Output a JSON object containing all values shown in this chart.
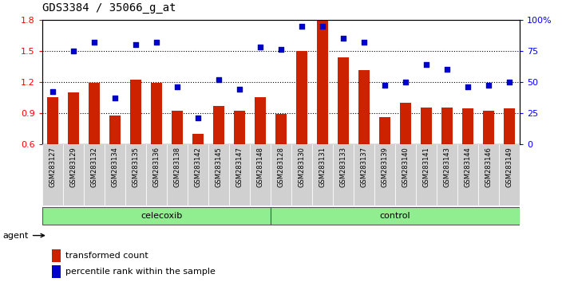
{
  "title": "GDS3384 / 35066_g_at",
  "categories": [
    "GSM283127",
    "GSM283129",
    "GSM283132",
    "GSM283134",
    "GSM283135",
    "GSM283136",
    "GSM283138",
    "GSM283142",
    "GSM283145",
    "GSM283147",
    "GSM283148",
    "GSM283128",
    "GSM283130",
    "GSM283131",
    "GSM283133",
    "GSM283137",
    "GSM283139",
    "GSM283140",
    "GSM283141",
    "GSM283143",
    "GSM283144",
    "GSM283146",
    "GSM283149"
  ],
  "bar_values": [
    1.05,
    1.1,
    1.19,
    0.87,
    1.22,
    1.19,
    0.92,
    0.7,
    0.97,
    0.92,
    1.05,
    0.89,
    1.5,
    1.8,
    1.44,
    1.31,
    0.86,
    1.0,
    0.95,
    0.95,
    0.94,
    0.92,
    0.94
  ],
  "blue_values": [
    42,
    75,
    82,
    37,
    80,
    82,
    46,
    21,
    52,
    44,
    78,
    76,
    95,
    95,
    85,
    82,
    47,
    50,
    64,
    60,
    46,
    47,
    50
  ],
  "bar_color": "#cc2200",
  "dot_color": "#0000cc",
  "ylim_left": [
    0.6,
    1.8
  ],
  "ylim_right": [
    0,
    100
  ],
  "yticks_left": [
    0.6,
    0.9,
    1.2,
    1.5,
    1.8
  ],
  "yticks_right": [
    0,
    25,
    50,
    75,
    100
  ],
  "ytick_labels_right": [
    "0",
    "25",
    "50",
    "75",
    "100%"
  ],
  "celecoxib_count": 11,
  "control_count": 12,
  "agent_label": "agent",
  "legend_bar_label": "transformed count",
  "legend_dot_label": "percentile rank within the sample",
  "bar_color_hex": "#cc2200",
  "dot_color_hex": "#0000cc",
  "title_fontsize": 10,
  "group_color": "#90ee90",
  "xticklabel_gray": "#d0d0d0"
}
